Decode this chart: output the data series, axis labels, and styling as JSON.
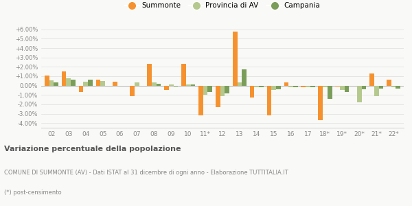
{
  "categories": [
    "02",
    "03",
    "04",
    "05",
    "06",
    "07",
    "08",
    "09",
    "10",
    "11*",
    "12",
    "13",
    "14",
    "15",
    "16",
    "17",
    "18*",
    "19*",
    "20*",
    "21*",
    "22*"
  ],
  "summonte": [
    1.1,
    1.5,
    -0.7,
    0.6,
    0.4,
    -1.1,
    2.3,
    -0.5,
    2.3,
    -3.2,
    -2.3,
    5.8,
    -1.3,
    -3.2,
    0.35,
    -0.15,
    -3.7,
    -0.1,
    -0.05,
    1.3,
    0.6
  ],
  "provincia": [
    0.55,
    0.8,
    0.4,
    0.45,
    0.0,
    0.35,
    0.35,
    0.1,
    0.15,
    -1.0,
    -1.1,
    0.35,
    -0.2,
    -0.5,
    -0.2,
    -0.2,
    -0.15,
    -0.5,
    -1.8,
    -1.1,
    -0.15
  ],
  "campania": [
    0.35,
    0.6,
    0.6,
    0.0,
    0.0,
    0.0,
    0.2,
    -0.1,
    0.15,
    -0.7,
    -0.85,
    1.7,
    -0.2,
    -0.4,
    -0.15,
    -0.15,
    -1.4,
    -0.7,
    -0.4,
    -0.3,
    -0.3
  ],
  "summonte_color": "#f5922f",
  "provincia_color": "#b5c98e",
  "campania_color": "#7a9e5a",
  "bg_color": "#f9f9f7",
  "grid_color": "#dddddd",
  "title_bold": "Variazione percentuale della popolazione",
  "subtitle": "COMUNE DI SUMMONTE (AV) - Dati ISTAT al 31 dicembre di ogni anno - Elaborazione TUTTITALIA.IT",
  "footnote": "(*) post-censimento",
  "ylim": [
    -4.5,
    6.5
  ],
  "yticks": [
    -4.0,
    -3.0,
    -2.0,
    -1.0,
    0.0,
    1.0,
    2.0,
    3.0,
    4.0,
    5.0,
    6.0
  ],
  "bar_width": 0.27
}
